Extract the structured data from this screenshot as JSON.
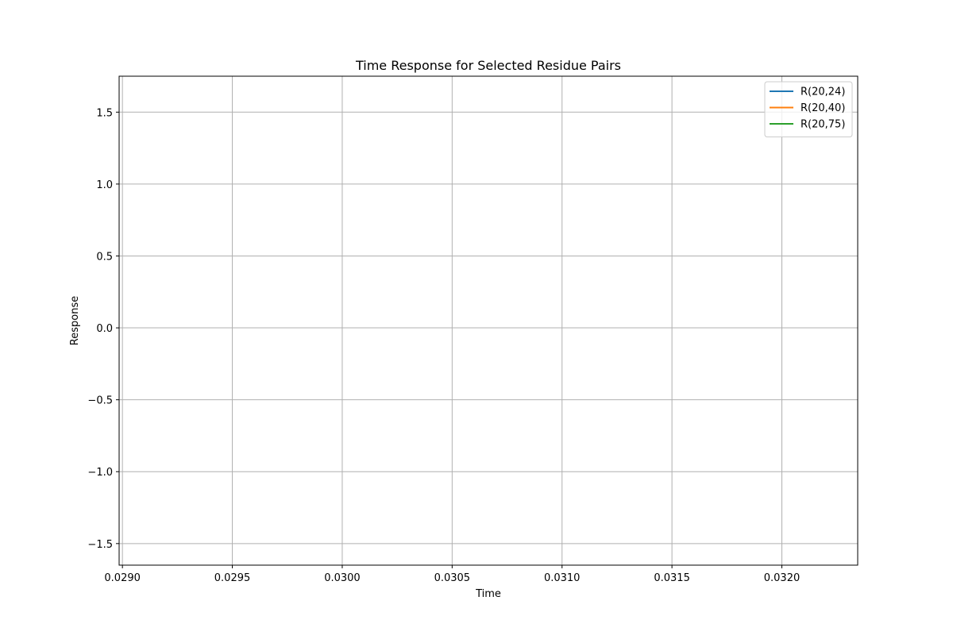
{
  "chart_data": {
    "type": "line",
    "title": "Time Response for Selected Residue Pairs",
    "xlabel": "Time",
    "ylabel": "Response",
    "xlim": [
      0.028985,
      0.032345
    ],
    "ylim": [
      -1.65,
      1.75
    ],
    "x_ticks": [
      {
        "value": 0.029,
        "label": "0.0290"
      },
      {
        "value": 0.0295,
        "label": "0.0295"
      },
      {
        "value": 0.03,
        "label": "0.0300"
      },
      {
        "value": 0.0305,
        "label": "0.0305"
      },
      {
        "value": 0.031,
        "label": "0.0310"
      },
      {
        "value": 0.0315,
        "label": "0.0315"
      },
      {
        "value": 0.032,
        "label": "0.0320"
      }
    ],
    "y_ticks": [
      {
        "value": -1.5,
        "label": "−1.5"
      },
      {
        "value": -1.0,
        "label": "−1.0"
      },
      {
        "value": -0.5,
        "label": "−0.5"
      },
      {
        "value": 0.0,
        "label": "0.0"
      },
      {
        "value": 0.5,
        "label": "0.5"
      },
      {
        "value": 1.0,
        "label": "1.0"
      },
      {
        "value": 1.5,
        "label": "1.5"
      }
    ],
    "grid": true,
    "legend_position": "top-right",
    "series": [
      {
        "name": "R(20,24)",
        "color": "#1f77b4",
        "x": [],
        "y": []
      },
      {
        "name": "R(20,40)",
        "color": "#ff7f0e",
        "x": [],
        "y": []
      },
      {
        "name": "R(20,75)",
        "color": "#2ca02c",
        "x": [],
        "y": []
      }
    ]
  }
}
